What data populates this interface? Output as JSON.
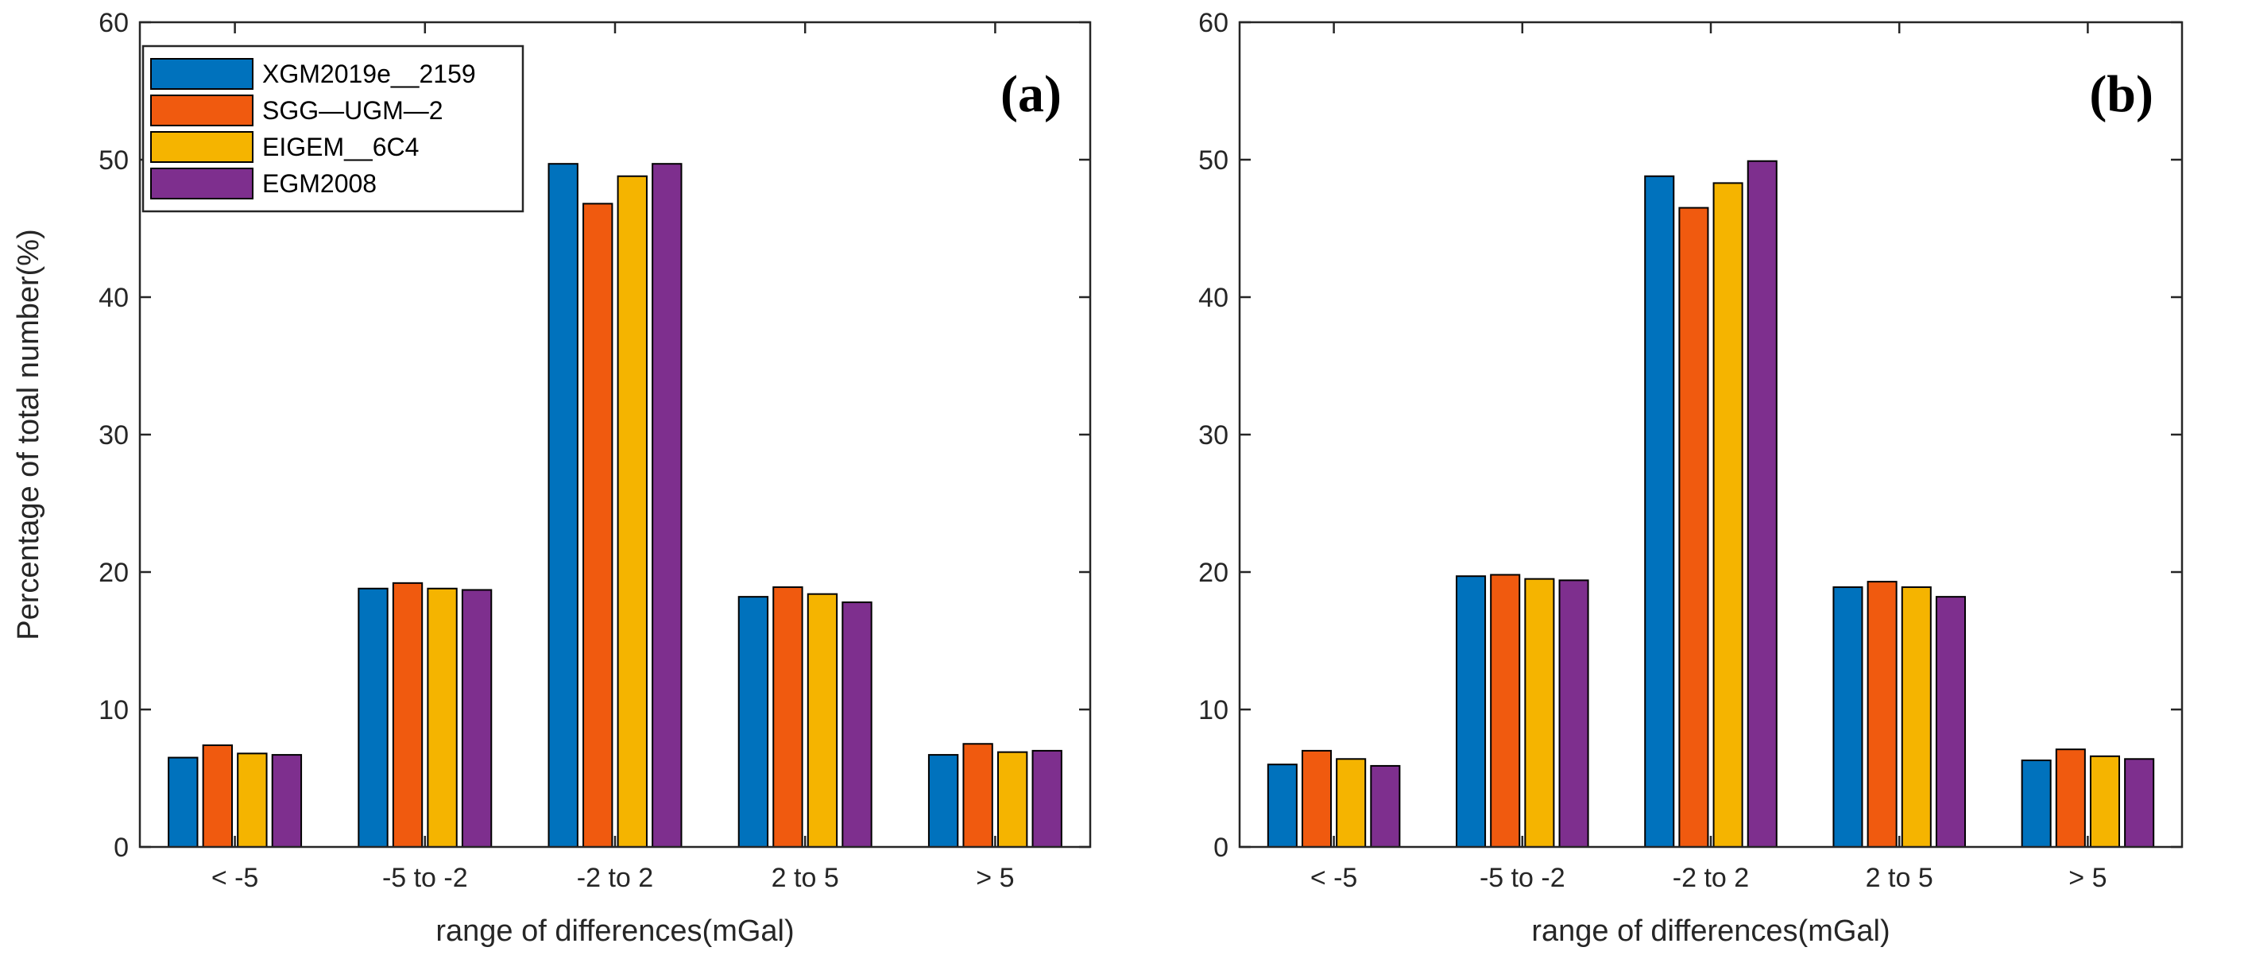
{
  "chart_data": [
    {
      "type": "bar",
      "panel_label": "(a)",
      "categories": [
        "< -5",
        "-5 to -2",
        "-2 to 2",
        "2 to 5",
        "> 5"
      ],
      "series": [
        {
          "name": "XGM2019e__2159",
          "color": "#0072BD",
          "values": [
            6.5,
            18.8,
            49.7,
            18.2,
            6.7
          ]
        },
        {
          "name": "SGG—UGM—2",
          "color": "#F05A0F",
          "values": [
            7.4,
            19.2,
            46.8,
            18.9,
            7.5
          ]
        },
        {
          "name": "EIGEM__6C4",
          "color": "#F5B400",
          "values": [
            6.8,
            18.8,
            48.8,
            18.4,
            6.9
          ]
        },
        {
          "name": "EGM2008",
          "color": "#7E2F8E",
          "values": [
            6.7,
            18.7,
            49.7,
            17.8,
            7.0
          ]
        }
      ],
      "xlabel": "range of differences(mGal)",
      "ylabel": "Percentage of total number(%)",
      "ylim": [
        0,
        60
      ],
      "yticks": [
        0,
        10,
        20,
        30,
        40,
        50,
        60
      ],
      "legend": "top-left",
      "grid": false
    },
    {
      "type": "bar",
      "panel_label": "(b)",
      "categories": [
        "< -5",
        "-5 to -2",
        "-2 to 2",
        "2 to 5",
        "> 5"
      ],
      "series": [
        {
          "name": "XGM2019e__2159",
          "color": "#0072BD",
          "values": [
            6.0,
            19.7,
            48.8,
            18.9,
            6.3
          ]
        },
        {
          "name": "SGG—UGM—2",
          "color": "#F05A0F",
          "values": [
            7.0,
            19.8,
            46.5,
            19.3,
            7.1
          ]
        },
        {
          "name": "EIGEM__6C4",
          "color": "#F5B400",
          "values": [
            6.4,
            19.5,
            48.3,
            18.9,
            6.6
          ]
        },
        {
          "name": "EGM2008",
          "color": "#7E2F8E",
          "values": [
            5.9,
            19.4,
            49.9,
            18.2,
            6.4
          ]
        }
      ],
      "xlabel": "range of differences(mGal)",
      "ylabel": "",
      "ylim": [
        0,
        60
      ],
      "yticks": [
        0,
        10,
        20,
        30,
        40,
        50,
        60
      ],
      "legend": "none",
      "grid": false
    }
  ]
}
